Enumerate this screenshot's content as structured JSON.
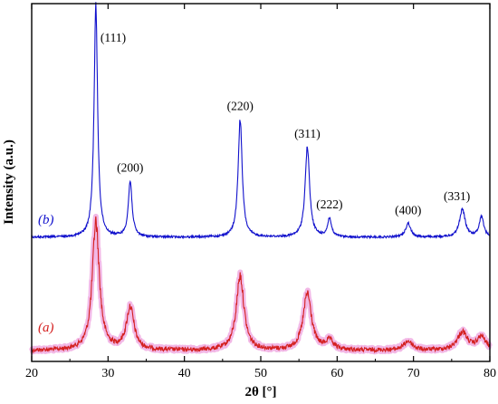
{
  "chart_data": {
    "type": "line",
    "xlabel": "2θ [°]",
    "ylabel": "Intensity (a.u.)",
    "xlim": [
      20,
      80
    ],
    "x_ticks": [
      20,
      30,
      40,
      50,
      60,
      70,
      80
    ],
    "y_ticks_shown": false,
    "grid": false,
    "colors": {
      "a": "#d42020",
      "b": "#1010cc",
      "a_halo": "#f2b8e6"
    },
    "series": [
      {
        "name": "(a)",
        "label_open": "(",
        "label_letter": "a",
        "label_close": ")",
        "baseline": 0.0,
        "peaks": [
          {
            "x": 28.4,
            "height": 1.0,
            "width": 0.55
          },
          {
            "x": 32.9,
            "height": 0.33,
            "width": 0.6
          },
          {
            "x": 47.3,
            "height": 0.58,
            "width": 0.6
          },
          {
            "x": 56.1,
            "height": 0.44,
            "width": 0.65
          },
          {
            "x": 59.0,
            "height": 0.07,
            "width": 0.6
          },
          {
            "x": 69.3,
            "height": 0.07,
            "width": 0.7
          },
          {
            "x": 76.4,
            "height": 0.14,
            "width": 0.8
          },
          {
            "x": 78.9,
            "height": 0.1,
            "width": 0.7
          }
        ]
      },
      {
        "name": "(b)",
        "label_open": "(",
        "label_letter": "b",
        "label_close": ")",
        "baseline": 0.0,
        "peaks": [
          {
            "x": 28.4,
            "height": 1.0,
            "width": 0.28
          },
          {
            "x": 32.9,
            "height": 0.24,
            "width": 0.3
          },
          {
            "x": 47.3,
            "height": 0.51,
            "width": 0.32
          },
          {
            "x": 56.1,
            "height": 0.39,
            "width": 0.35
          },
          {
            "x": 59.0,
            "height": 0.08,
            "width": 0.3
          },
          {
            "x": 69.3,
            "height": 0.06,
            "width": 0.4
          },
          {
            "x": 76.4,
            "height": 0.12,
            "width": 0.45
          },
          {
            "x": 78.9,
            "height": 0.09,
            "width": 0.35
          }
        ]
      }
    ],
    "annotations": [
      {
        "text": "(111)",
        "x": 28.4
      },
      {
        "text": "(200)",
        "x": 32.9
      },
      {
        "text": "(220)",
        "x": 47.3
      },
      {
        "text": "(311)",
        "x": 56.1
      },
      {
        "text": "(222)",
        "x": 59.0
      },
      {
        "text": "(400)",
        "x": 69.3
      },
      {
        "text": "(331)",
        "x": 76.4
      }
    ]
  }
}
